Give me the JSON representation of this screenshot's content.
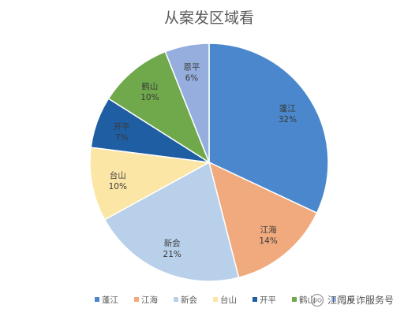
{
  "chart_data": {
    "type": "pie",
    "title": "从案发区域看",
    "categories": [
      "蓬江",
      "江海",
      "新会",
      "台山",
      "开平",
      "鹤山",
      "恩平"
    ],
    "values": [
      32,
      14,
      21,
      10,
      7,
      10,
      6
    ],
    "value_labels": [
      "32%",
      "14%",
      "21%",
      "10%",
      "7%",
      "10%",
      "6%"
    ],
    "colors": [
      "#4a87cc",
      "#f0aa7e",
      "#b9d0ea",
      "#fbe6a6",
      "#1f5ea3",
      "#6fa94c",
      "#95aede"
    ],
    "start": "12 o'clock, clockwise",
    "legend_position": "bottom"
  },
  "watermark": {
    "text": "江门反诈服务号",
    "icon": "wechat-channel-icon"
  }
}
